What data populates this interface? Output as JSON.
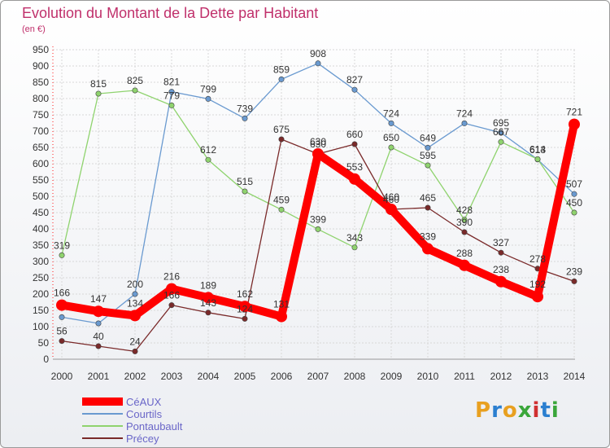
{
  "title": "Evolution du Montant de la Dette par Habitant",
  "unit": "(en €)",
  "logo": {
    "text": "Proxiti",
    "colors": [
      "#e8a020",
      "#2b7fd0",
      "#e8a020",
      "#3aa63a",
      "#d03030",
      "#2b7fd0",
      "#3aa63a"
    ]
  },
  "chart_data": {
    "type": "line",
    "title": "Evolution du Montant de la Dette par Habitant",
    "ylabel": "(en €)",
    "xlabel": "",
    "ylim": [
      0,
      950
    ],
    "yticks": [
      0,
      50,
      100,
      150,
      200,
      250,
      300,
      350,
      400,
      450,
      500,
      550,
      600,
      650,
      700,
      750,
      800,
      850,
      900,
      950
    ],
    "x": [
      "2000",
      "2001",
      "2002",
      "2003",
      "2004",
      "2005",
      "2006",
      "2007",
      "2008",
      "2009",
      "2010",
      "2011",
      "2012",
      "2013",
      "2014"
    ],
    "grid": true,
    "legend_position": "bottom-left",
    "series": [
      {
        "name": "Courtils",
        "color": "#6a9ad0",
        "values": [
          129,
          110,
          200,
          821,
          799,
          739,
          859,
          908,
          827,
          724,
          649,
          724,
          695,
          613,
          507
        ],
        "labels": [
          "",
          "",
          "200",
          "821",
          "799",
          "739",
          "859",
          "908",
          "827",
          "724",
          "649",
          "724",
          "695",
          "613",
          "507"
        ]
      },
      {
        "name": "Pontaubault",
        "color": "#8fd36e",
        "values": [
          319,
          815,
          825,
          779,
          612,
          515,
          459,
          399,
          343,
          650,
          595,
          428,
          667,
          614,
          450
        ],
        "labels": [
          "319",
          "815",
          "825",
          "779",
          "612",
          "515",
          "459",
          "399",
          "343",
          "650",
          "595",
          "428",
          "667",
          "614",
          "450"
        ]
      },
      {
        "name": "Précey",
        "color": "#7a2a2a",
        "values": [
          56,
          40,
          24,
          166,
          143,
          124,
          675,
          630,
          660,
          460,
          465,
          390,
          327,
          278,
          239
        ],
        "labels": [
          "56",
          "40",
          "24",
          "166",
          "143",
          "124",
          "675",
          "630",
          "660",
          "460",
          "465",
          "390",
          "327",
          "278",
          "239"
        ]
      },
      {
        "name": "CéAUX",
        "color": "#ff0000",
        "values": [
          166,
          147,
          134,
          216,
          189,
          162,
          131,
          630,
          553,
          460,
          339,
          288,
          238,
          192,
          721
        ],
        "labels": [
          "166",
          "147",
          "134",
          "216",
          "189",
          "162",
          "131",
          "630",
          "553",
          "460",
          "339",
          "288",
          "238",
          "192",
          "721"
        ]
      }
    ],
    "legend": [
      "CéAUX",
      "Courtils",
      "Pontaubault",
      "Précey"
    ]
  }
}
